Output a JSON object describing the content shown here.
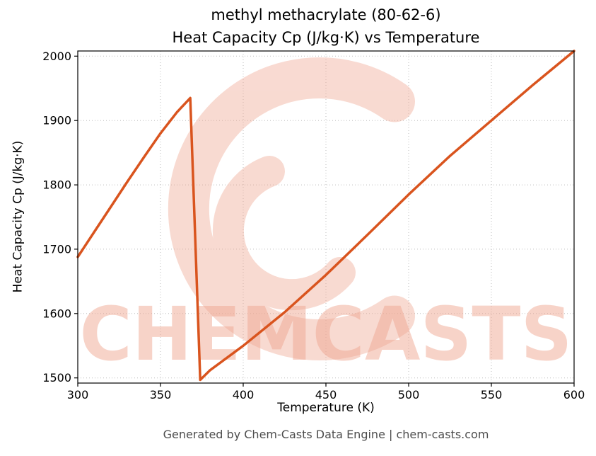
{
  "page": {
    "footer": "Generated by Chem-Casts Data Engine | chem-casts.com",
    "watermark_text": "CHEMCASTS"
  },
  "watermark": {
    "color": "#f0a893"
  },
  "chart_data": {
    "type": "line",
    "title": "methyl methacrylate (80-62-6)",
    "subtitle": "Heat Capacity Cp (J/kg·K) vs Temperature",
    "xlabel": "Temperature (K)",
    "ylabel": "Heat Capacity Cp (J/kg·K)",
    "xlim": [
      300,
      600
    ],
    "ylim": [
      1492,
      2008
    ],
    "x_ticks": [
      300,
      350,
      400,
      450,
      500,
      550,
      600
    ],
    "y_ticks": [
      1500,
      1600,
      1700,
      1800,
      1900,
      2000
    ],
    "grid": true,
    "grid_style": "dotted",
    "line_color": "#d9541e",
    "line_width": 3.5,
    "series": [
      {
        "name": "Heat Capacity Cp",
        "points": [
          [
            300,
            1688
          ],
          [
            310,
            1727
          ],
          [
            320,
            1766
          ],
          [
            330,
            1805
          ],
          [
            340,
            1843
          ],
          [
            350,
            1880
          ],
          [
            360,
            1913
          ],
          [
            368,
            1935
          ],
          [
            374,
            1497
          ],
          [
            380,
            1512
          ],
          [
            400,
            1550
          ],
          [
            425,
            1602
          ],
          [
            450,
            1660
          ],
          [
            475,
            1722
          ],
          [
            500,
            1785
          ],
          [
            525,
            1845
          ],
          [
            550,
            1900
          ],
          [
            575,
            1955
          ],
          [
            600,
            2008
          ]
        ]
      }
    ]
  }
}
